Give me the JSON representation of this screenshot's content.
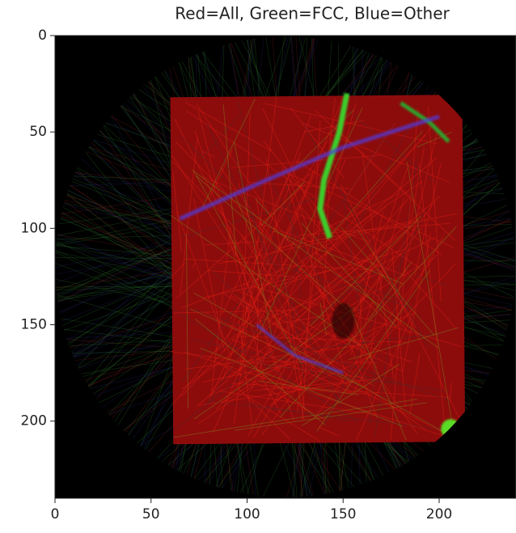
{
  "chart_data": {
    "type": "image",
    "title": "Red=All, Green=FCC, Blue=Other",
    "xlim": [
      0,
      240
    ],
    "ylim": [
      240,
      0
    ],
    "xticks": [
      0,
      50,
      100,
      150,
      200
    ],
    "yticks": [
      0,
      50,
      100,
      150,
      200
    ]
  }
}
